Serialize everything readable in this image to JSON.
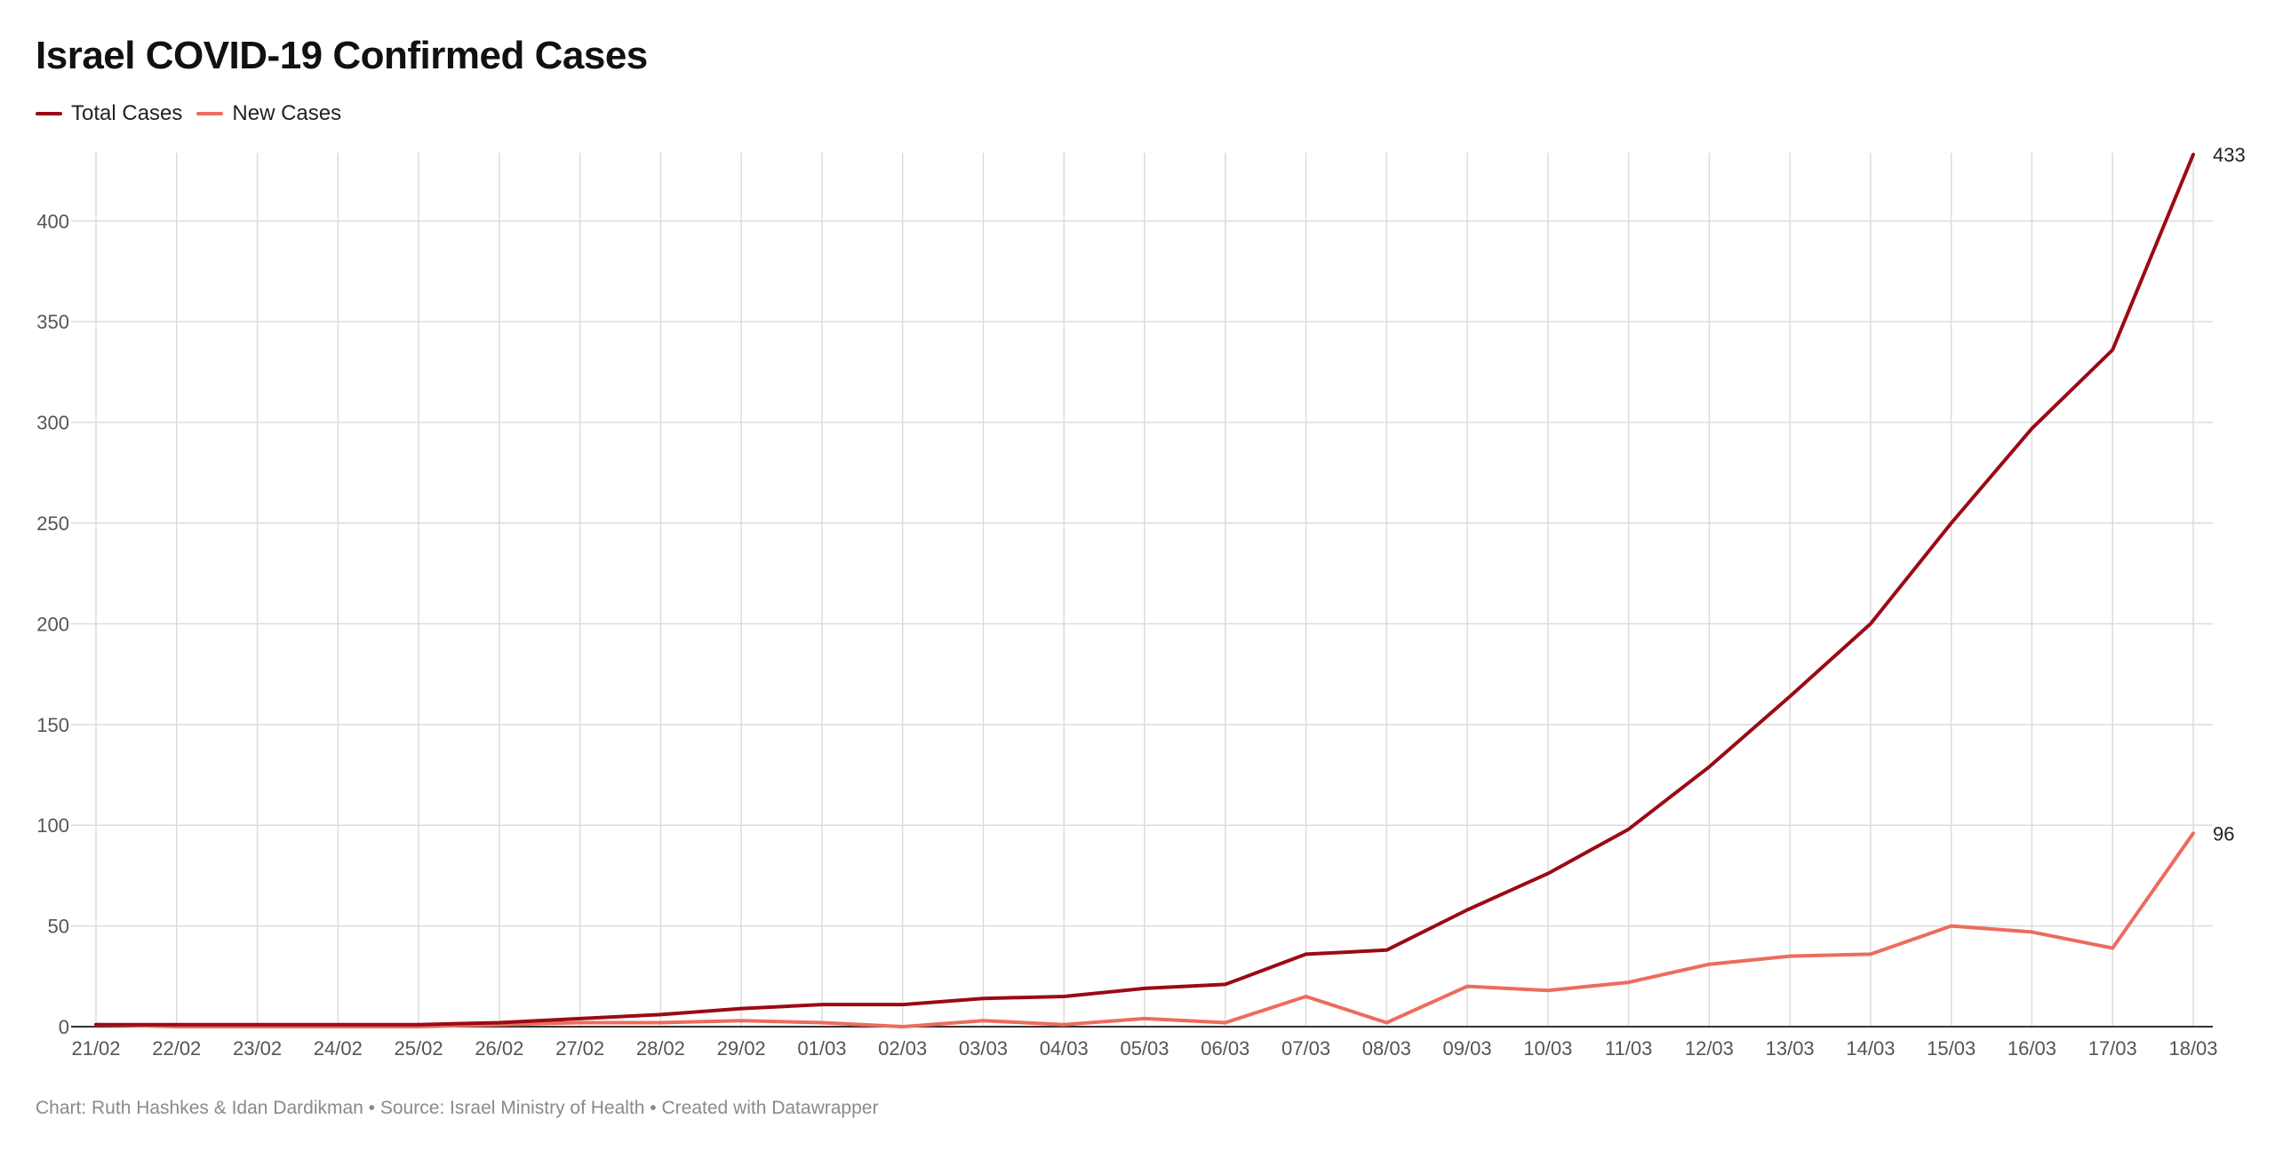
{
  "chart_data": {
    "type": "line",
    "title": "Israel COVID-19 Confirmed Cases",
    "x": [
      "21/02",
      "22/02",
      "23/02",
      "24/02",
      "25/02",
      "26/02",
      "27/02",
      "28/02",
      "29/02",
      "01/03",
      "02/03",
      "03/03",
      "04/03",
      "05/03",
      "06/03",
      "07/03",
      "08/03",
      "09/03",
      "10/03",
      "11/03",
      "12/03",
      "13/03",
      "14/03",
      "15/03",
      "16/03",
      "17/03",
      "18/03"
    ],
    "series": [
      {
        "name": "Total Cases",
        "color": "#9b0a14",
        "values": [
          1,
          1,
          1,
          1,
          1,
          2,
          4,
          6,
          9,
          11,
          11,
          14,
          15,
          19,
          21,
          36,
          38,
          58,
          76,
          98,
          129,
          164,
          200,
          250,
          297,
          336,
          433
        ]
      },
      {
        "name": "New Cases",
        "color": "#ec6c5e",
        "values": [
          1,
          0,
          0,
          0,
          0,
          1,
          2,
          2,
          3,
          2,
          0,
          3,
          1,
          4,
          2,
          15,
          2,
          20,
          18,
          22,
          31,
          35,
          36,
          50,
          47,
          39,
          96
        ]
      }
    ],
    "end_labels": [
      "433",
      "96"
    ],
    "yticks": [
      0,
      50,
      100,
      150,
      200,
      250,
      300,
      350,
      400
    ],
    "ylim": [
      0,
      433
    ],
    "grid": true,
    "legend": "top-left"
  },
  "footer": "Chart: Ruth Hashkes & Idan Dardikman • Source: Israel Ministry of Health • Created with Datawrapper"
}
